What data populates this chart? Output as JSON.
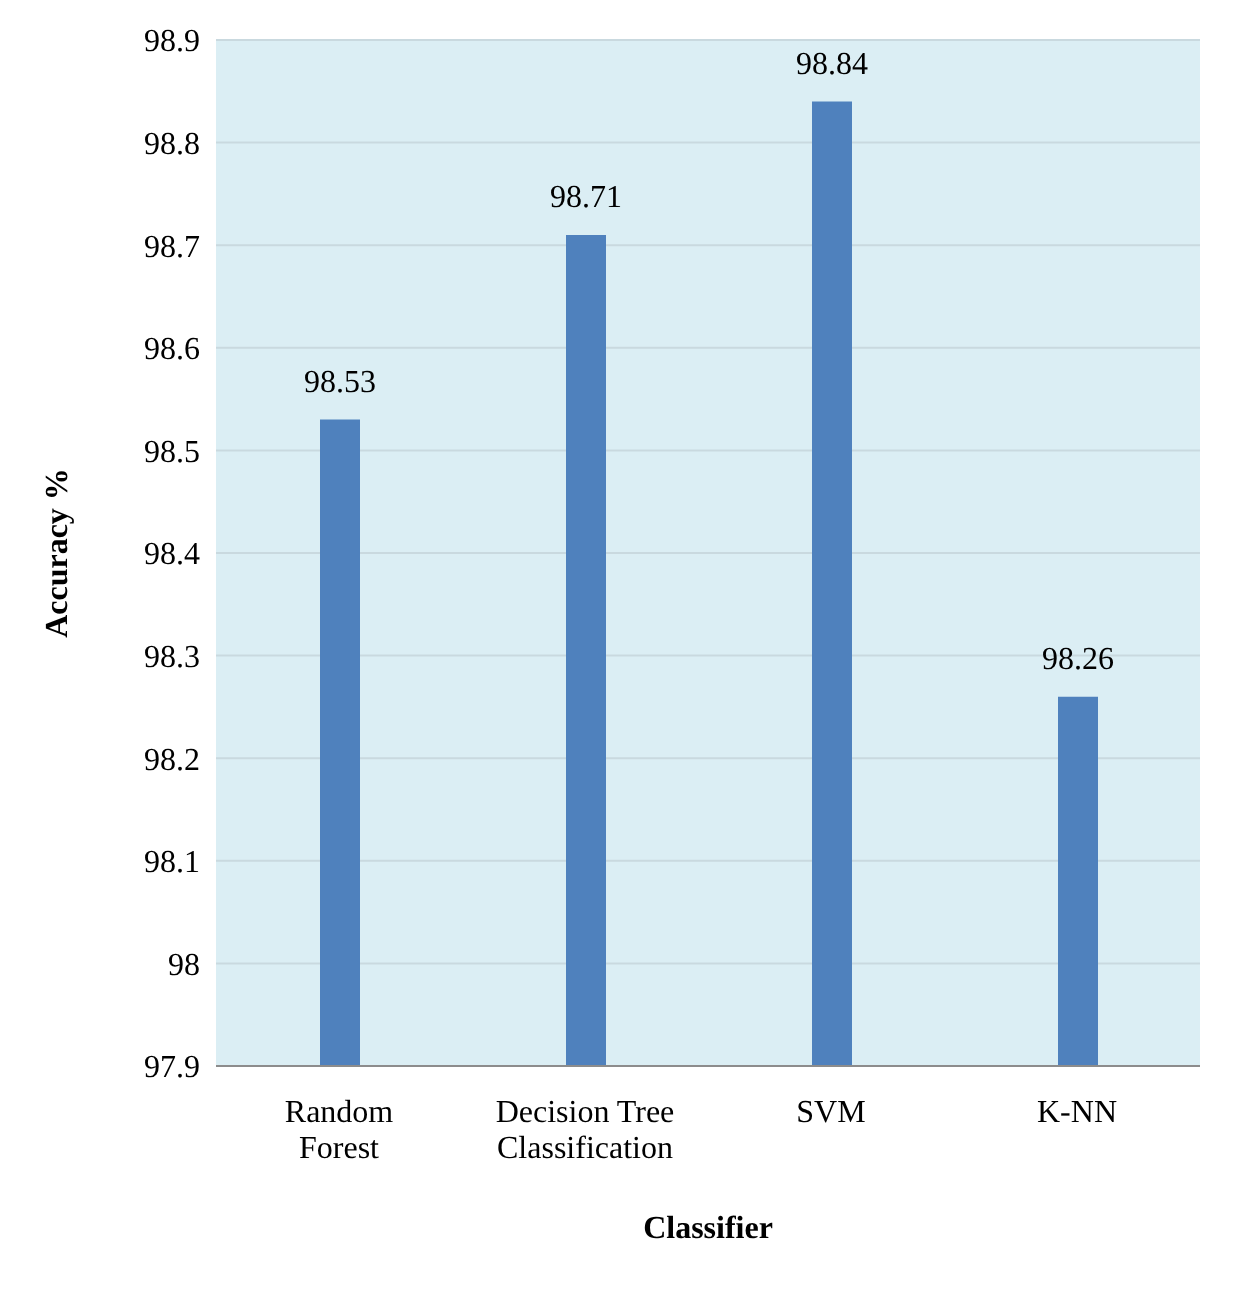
{
  "chart_data": {
    "type": "bar",
    "xlabel": "Classifier",
    "ylabel": "Accuracy %",
    "categories": [
      "Random Forest",
      "Decision Tree Classification",
      "SVM",
      "K-NN"
    ],
    "values": [
      98.53,
      98.71,
      98.84,
      98.26
    ],
    "color": "#4f81bd",
    "ylim": [
      97.9,
      98.9
    ],
    "yticks": [
      97.9,
      98,
      98.1,
      98.2,
      98.3,
      98.4,
      98.5,
      98.6,
      98.7,
      98.8,
      98.9
    ],
    "grid": "y",
    "legend": false,
    "data_labels": true
  }
}
